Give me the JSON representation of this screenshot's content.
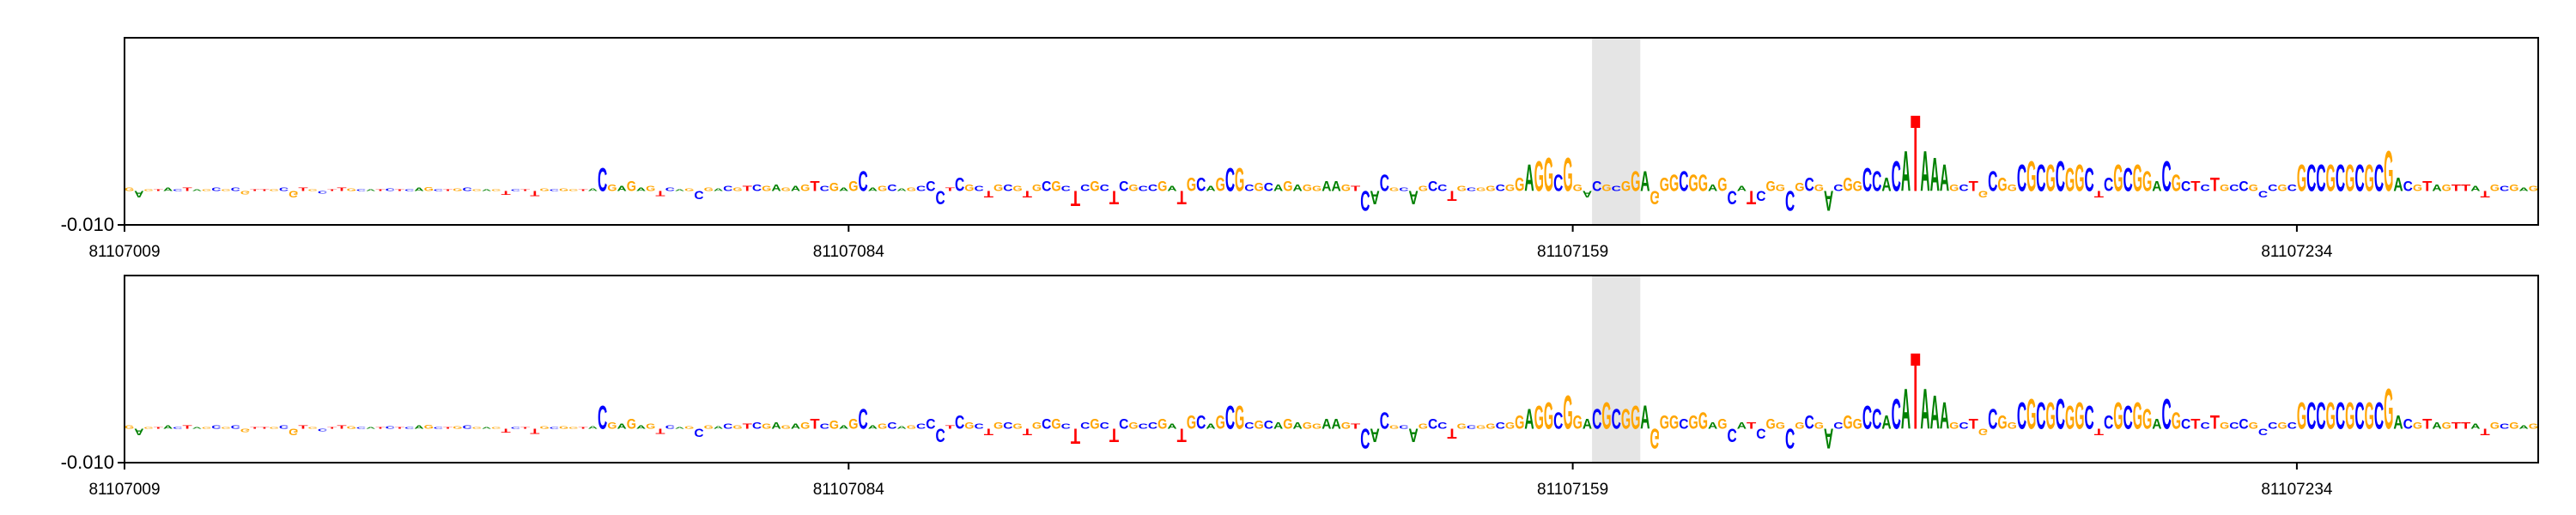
{
  "chart_data": [
    {
      "type": "logo",
      "sequence": "GAGTACTAGCGCGTTGCGTGCTTGCATCTCAGCTGCGAGTCTTGCGGTACGAGAGTCAGCGACGTCGAGAGTCGAGCAGCAGCCCTCGCTGCGTGCGCTCGCTCGCCGATGCAGCGCGCAGAGGAAGTCACGCAGCCTGCGGCGGAGGCGGACGCGGAGGGCGGAGCATCGGCGCGACGGCCACATAAAGCTGCGGCGCGCGGCTCGCGGACGCTCTGCCGCCGCGCCGCGCGCGACGTAGTTATGCGAG",
      "values": [
        0.001,
        -0.002,
        0.0005,
        0.0005,
        0.001,
        0.0005,
        0.001,
        0.0005,
        0.0005,
        0.001,
        0.0005,
        0.001,
        -0.001,
        0.0005,
        0.0005,
        0.0005,
        0.001,
        -0.002,
        0.001,
        0.0005,
        -0.0008,
        0.0005,
        0.001,
        0.0008,
        0.0005,
        0.0005,
        0.0005,
        0.0008,
        0.0005,
        0.0005,
        0.001,
        0.0012,
        0.0005,
        0.0005,
        0.0008,
        0.001,
        0.0005,
        0.0005,
        0.0005,
        -0.0012,
        0.0005,
        0.0005,
        -0.0015,
        0.0008,
        0.0005,
        0.0008,
        0.0005,
        0.0005,
        0.0008,
        0.007,
        0.002,
        0.0015,
        0.003,
        0.001,
        0.0015,
        -0.0015,
        0.001,
        0.0005,
        0.0008,
        -0.0025,
        0.001,
        0.0008,
        0.0015,
        0.001,
        0.0015,
        0.002,
        0.0015,
        0.002,
        0.001,
        0.0015,
        0.002,
        0.003,
        0.0015,
        0.0025,
        0.001,
        0.003,
        0.006,
        0.001,
        0.0015,
        0.002,
        0.0008,
        0.001,
        0.0015,
        0.003,
        -0.004,
        0.001,
        0.004,
        0.002,
        0.0015,
        -0.002,
        0.002,
        0.002,
        0.0015,
        -0.002,
        0.002,
        0.003,
        0.003,
        0.0015,
        -0.0045,
        0.002,
        0.003,
        0.002,
        -0.004,
        0.003,
        0.002,
        0.0015,
        0.002,
        0.003,
        0.0015,
        -0.004,
        0.004,
        0.004,
        0.0015,
        0.004,
        0.007,
        0.007,
        0.002,
        0.0025,
        0.0025,
        0.002,
        0.003,
        0.002,
        0.002,
        0.0015,
        0.003,
        0.003,
        0.002,
        0.0015,
        -0.006,
        -0.004,
        0.005,
        0.001,
        0.001,
        -0.004,
        0.0015,
        0.003,
        0.002,
        -0.003,
        0.0015,
        0.001,
        0.001,
        0.0015,
        0.002,
        0.002,
        0.004,
        0.008,
        0.009,
        0.01,
        0.005,
        0.01,
        0.002,
        -0.002,
        0.003,
        0.002,
        0.0015,
        0.003,
        0.006,
        0.006,
        -0.004,
        0.004,
        0.005,
        0.006,
        0.005,
        0.005,
        0.002,
        0.004,
        -0.004,
        0.0015,
        -0.004,
        -0.003,
        0.003,
        0.002,
        -0.006,
        0.0025,
        0.004,
        0.002,
        -0.006,
        0.002,
        0.004,
        0.003,
        0.007,
        0.006,
        0.004,
        0.009,
        0.012,
        0.023,
        0.012,
        0.01,
        0.008,
        0.002,
        0.002,
        0.003,
        -0.002,
        0.006,
        0.004,
        0.002,
        0.008,
        0.009,
        0.008,
        0.008,
        0.009,
        0.007,
        0.008,
        0.007,
        -0.002,
        0.004,
        0.008,
        0.007,
        0.008,
        0.006,
        0.003,
        0.009,
        0.005,
        0.003,
        0.003,
        0.002,
        0.004,
        0.002,
        0.002,
        0.003,
        0.002,
        -0.002,
        0.002,
        0.002,
        0.002,
        0.008,
        0.008,
        0.008,
        0.008,
        0.008,
        0.008,
        0.008,
        0.008,
        0.008,
        0.012,
        0.004,
        0.003,
        0.002,
        0.003,
        0.002,
        0.002,
        0.002,
        0.002,
        0.0015,
        -0.002,
        0.002,
        0.0015,
        0.002,
        0.001,
        0.0015
      ],
      "colors": {
        "A": "#008000",
        "C": "#0000ff",
        "G": "#ffa500",
        "T": "#ff0000"
      },
      "highlight": [
        81107161,
        81107166
      ],
      "highlight_color": "#e5e5e5",
      "xlim": [
        81107009,
        81107259
      ],
      "xticks": [
        81107009,
        81107084,
        81107159,
        81107234
      ],
      "ylim": [
        -0.01,
        0.045
      ],
      "yticks": [
        {
          "value": -0.01,
          "label": "-0.010"
        }
      ]
    },
    {
      "type": "logo",
      "sequence": "GAGTACTAGCGCGTTGCGTGCTTGCATCTCAGCTGCGAGTCTTGCGGTACGAGAGTCAGCGACGTCGAGAGTCGAGCAGCAGCCCTCGCTGCGTGCGCTCGCTCGCCGATGCAGCGCGCAGAGGAAGTCACGCAGCCTGCGGCGGAGGCGGACGCGGAGGGCGGAGCATCGGCGCGACGGCCACATAAAGCTGCGGCGCGCGGCTCGCGGACGCTCTGCCGCCGCGCCGCGCGCGACGTAGTTATGCGAG",
      "values": [
        0.001,
        -0.002,
        0.0005,
        0.0005,
        0.001,
        0.0005,
        0.001,
        0.0005,
        0.0005,
        0.001,
        0.0005,
        0.001,
        -0.001,
        0.0005,
        0.0005,
        0.0005,
        0.001,
        -0.002,
        0.001,
        0.0005,
        -0.0008,
        0.0005,
        0.001,
        0.0008,
        0.0005,
        0.0005,
        0.0005,
        0.0008,
        0.0005,
        0.0005,
        0.001,
        0.0012,
        0.0005,
        0.0005,
        0.0008,
        0.001,
        0.0005,
        0.0005,
        0.0005,
        -0.0012,
        0.0005,
        0.0005,
        -0.0015,
        0.0008,
        0.0005,
        0.0008,
        0.0005,
        0.0005,
        0.0008,
        0.007,
        0.002,
        0.0015,
        0.003,
        0.001,
        0.0015,
        -0.0015,
        0.001,
        0.0005,
        0.0008,
        -0.0025,
        0.001,
        0.0008,
        0.0015,
        0.001,
        0.0015,
        0.002,
        0.0015,
        0.002,
        0.001,
        0.0015,
        0.002,
        0.003,
        0.0015,
        0.0025,
        0.001,
        0.003,
        0.006,
        0.001,
        0.0015,
        0.002,
        0.0008,
        0.001,
        0.0015,
        0.003,
        -0.004,
        0.001,
        0.004,
        0.002,
        0.0015,
        -0.002,
        0.002,
        0.002,
        0.0015,
        -0.002,
        0.002,
        0.003,
        0.003,
        0.0015,
        -0.0045,
        0.002,
        0.003,
        0.002,
        -0.004,
        0.003,
        0.002,
        0.0015,
        0.002,
        0.003,
        0.0015,
        -0.004,
        0.004,
        0.004,
        0.0015,
        0.004,
        0.007,
        0.007,
        0.002,
        0.0025,
        0.0025,
        0.002,
        0.003,
        0.002,
        0.002,
        0.0015,
        0.003,
        0.003,
        0.002,
        0.0015,
        -0.006,
        -0.004,
        0.005,
        0.001,
        0.001,
        -0.004,
        0.0015,
        0.003,
        0.002,
        -0.003,
        0.0015,
        0.001,
        0.001,
        0.0015,
        0.002,
        0.002,
        0.004,
        0.006,
        0.007,
        0.008,
        0.005,
        0.01,
        0.004,
        0.003,
        0.006,
        0.008,
        0.006,
        0.006,
        0.007,
        0.007,
        -0.006,
        0.004,
        0.004,
        0.003,
        0.004,
        0.005,
        0.002,
        0.003,
        -0.004,
        0.002,
        0.002,
        -0.003,
        0.003,
        0.002,
        -0.006,
        0.002,
        0.004,
        0.002,
        -0.006,
        0.002,
        0.004,
        0.003,
        0.007,
        0.006,
        0.004,
        0.009,
        0.012,
        0.023,
        0.012,
        0.01,
        0.008,
        0.002,
        0.002,
        0.003,
        -0.002,
        0.006,
        0.004,
        0.002,
        0.008,
        0.009,
        0.008,
        0.008,
        0.009,
        0.007,
        0.008,
        0.007,
        -0.002,
        0.004,
        0.008,
        0.007,
        0.008,
        0.006,
        0.003,
        0.009,
        0.005,
        0.003,
        0.003,
        0.002,
        0.004,
        0.002,
        0.002,
        0.003,
        0.002,
        -0.002,
        0.002,
        0.002,
        0.002,
        0.008,
        0.008,
        0.008,
        0.008,
        0.008,
        0.008,
        0.008,
        0.008,
        0.008,
        0.012,
        0.004,
        0.003,
        0.002,
        0.003,
        0.002,
        0.002,
        0.002,
        0.002,
        0.0015,
        -0.002,
        0.002,
        0.0015,
        0.002,
        0.001,
        0.0015
      ],
      "colors": {
        "A": "#008000",
        "C": "#0000ff",
        "G": "#ffa500",
        "T": "#ff0000"
      },
      "highlight": [
        81107161,
        81107166
      ],
      "highlight_color": "#e5e5e5",
      "xlim": [
        81107009,
        81107259
      ],
      "xticks": [
        81107009,
        81107084,
        81107159,
        81107234
      ],
      "ylim": [
        -0.01,
        0.045
      ],
      "yticks": [
        {
          "value": -0.01,
          "label": "-0.010"
        }
      ]
    }
  ]
}
